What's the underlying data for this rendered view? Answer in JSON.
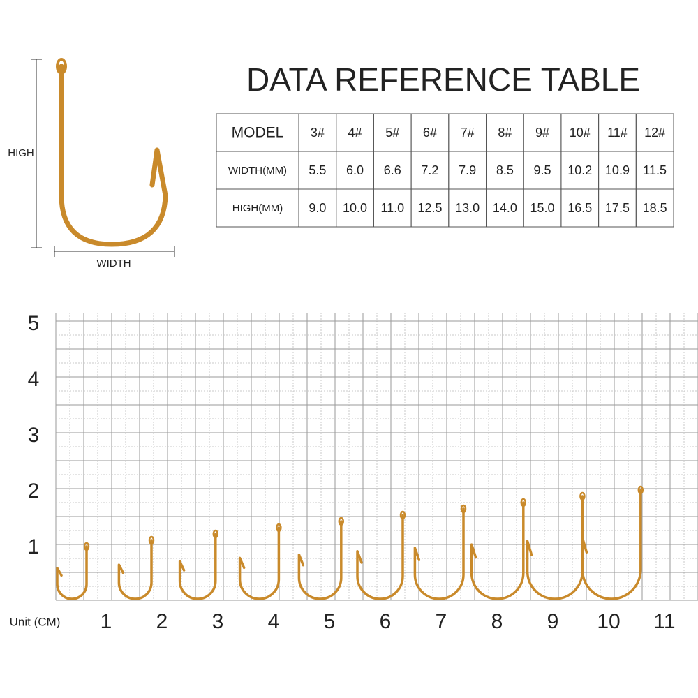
{
  "diagram": {
    "high_label": "HIGH",
    "width_label": "WIDTH"
  },
  "title": "DATA REFERENCE TABLE",
  "table": {
    "rows": [
      [
        "MODEL",
        "3#",
        "4#",
        "5#",
        "6#",
        "7#",
        "8#",
        "9#",
        "10#",
        "11#",
        "12#"
      ],
      [
        "WIDTH(MM)",
        "5.5",
        "6.0",
        "6.6",
        "7.2",
        "7.9",
        "8.5",
        "9.5",
        "10.2",
        "10.9",
        "11.5"
      ],
      [
        "HIGH(MM)",
        "9.0",
        "10.0",
        "11.0",
        "12.5",
        "13.0",
        "14.0",
        "15.0",
        "16.5",
        "17.5",
        "18.5"
      ]
    ]
  },
  "ruler": {
    "y_labels": [
      "1",
      "2",
      "3",
      "4",
      "5"
    ],
    "x_labels": [
      "1",
      "2",
      "3",
      "4",
      "5",
      "6",
      "7",
      "8",
      "9",
      "10",
      "11"
    ],
    "unit": "Unit (CM)"
  }
}
